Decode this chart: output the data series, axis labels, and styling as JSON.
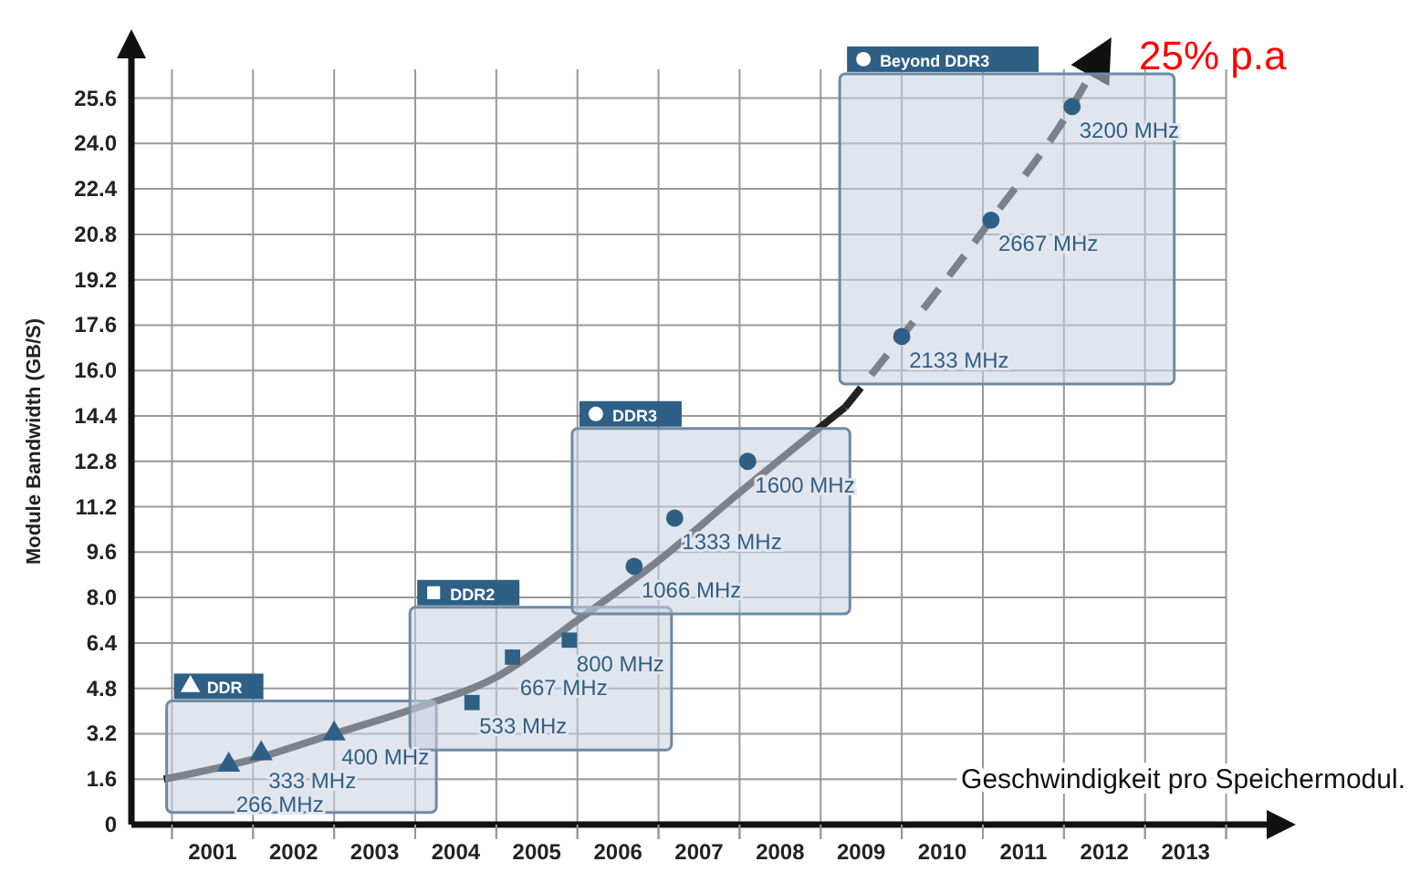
{
  "chart_data": {
    "type": "scatter",
    "ylabel": "Module Bandwidth (GB/S)",
    "xlim": [
      2000,
      2014
    ],
    "ylim": [
      0,
      27
    ],
    "xticks": [
      {
        "value": 2000.5,
        "label": null
      },
      2001,
      {
        "value": 2001.5,
        "label": null
      },
      2002,
      {
        "value": 2002.5,
        "label": null
      },
      2003,
      {
        "value": 2003.5,
        "label": null
      },
      2004,
      {
        "value": 2004.5,
        "label": null
      },
      2005,
      {
        "value": 2005.5,
        "label": null
      },
      2006,
      {
        "value": 2006.5,
        "label": null
      },
      2007,
      {
        "value": 2007.5,
        "label": null
      },
      2008,
      {
        "value": 2008.5,
        "label": null
      },
      2009,
      {
        "value": 2009.5,
        "label": null
      },
      2010,
      {
        "value": 2010.5,
        "label": null
      },
      2011,
      {
        "value": 2011.5,
        "label": null
      },
      2012,
      {
        "value": 2012.5,
        "label": null
      },
      2013,
      {
        "value": 2013.5,
        "label": null
      }
    ],
    "yticks": [
      0,
      1.6,
      3.2,
      4.8,
      6.4,
      {
        "value": 8,
        "label": "8.0"
      },
      9.6,
      11.2,
      12.8,
      14.4,
      {
        "value": 16,
        "label": "16.0"
      },
      17.6,
      19.2,
      20.8,
      22.4,
      {
        "value": 24,
        "label": "24.0"
      },
      25.6
    ],
    "grid": true,
    "series": [
      {
        "name": "DDR",
        "marker": "triangle",
        "color": "#2e5f85",
        "x": [
          2001.2,
          2001.6,
          2002.5
        ],
        "values": [
          2.1,
          2.5,
          3.2
        ]
      },
      {
        "name": "DDR2",
        "marker": "square",
        "color": "#2e5f85",
        "x": [
          2004.2,
          2004.7,
          2005.4
        ],
        "values": [
          4.3,
          5.9,
          6.5
        ]
      },
      {
        "name": "DDR3",
        "marker": "circle",
        "color": "#2e5f85",
        "x": [
          2006.2,
          2006.7,
          2007.6
        ],
        "values": [
          9.1,
          10.8,
          12.8
        ]
      },
      {
        "name": "Beyond DDR3",
        "marker": "circle",
        "color": "#2e5f85",
        "x": [
          2009.5,
          2010.6,
          2011.6
        ],
        "values": [
          17.2,
          21.3,
          25.3
        ]
      },
      {
        "type": "line",
        "line_style": "solid",
        "color": "#222222",
        "x": [
          2000.4,
          2001.5,
          2002.5,
          2003.5,
          2004.5,
          2005.5,
          2006.5,
          2007.5,
          2008.8
        ],
        "values": [
          1.6,
          2.3,
          3.2,
          4.1,
          5.2,
          7.2,
          9.3,
          11.7,
          14.7
        ]
      },
      {
        "type": "line",
        "line_style": "dashed",
        "color": "#222222",
        "x": [
          2008.8,
          2009.5,
          2010.6,
          2011.6,
          2011.9
        ],
        "values": [
          14.7,
          17.2,
          21.3,
          25.3,
          26.8
        ]
      }
    ],
    "annotations": [
      "25% p.a",
      "Geschwindigkeit pro Speichermodul.",
      {
        "text": "266 MHz",
        "x": 2001.2,
        "y": 2.1
      },
      {
        "text": "333 MHz",
        "x": 2001.6,
        "y": 2.5
      },
      {
        "text": "400 MHz",
        "x": 2002.5,
        "y": 3.2
      },
      {
        "text": "533 MHz",
        "x": 2004.2,
        "y": 4.3
      },
      {
        "text": "667 MHz",
        "x": 2004.7,
        "y": 5.9
      },
      {
        "text": "800 MHz",
        "x": 2005.4,
        "y": 6.5
      },
      {
        "text": "1066 MHz",
        "x": 2006.2,
        "y": 9.1
      },
      {
        "text": "1333 MHz",
        "x": 2006.7,
        "y": 10.8
      },
      {
        "text": "1600 MHz",
        "x": 2007.6,
        "y": 12.8
      },
      {
        "text": "2133 MHz",
        "x": 2009.5,
        "y": 17.2
      },
      {
        "text": "2667 MHz",
        "x": 2010.6,
        "y": 21.3
      },
      {
        "text": "3200 MHz",
        "x": 2011.6,
        "y": 25.3
      }
    ]
  }
}
